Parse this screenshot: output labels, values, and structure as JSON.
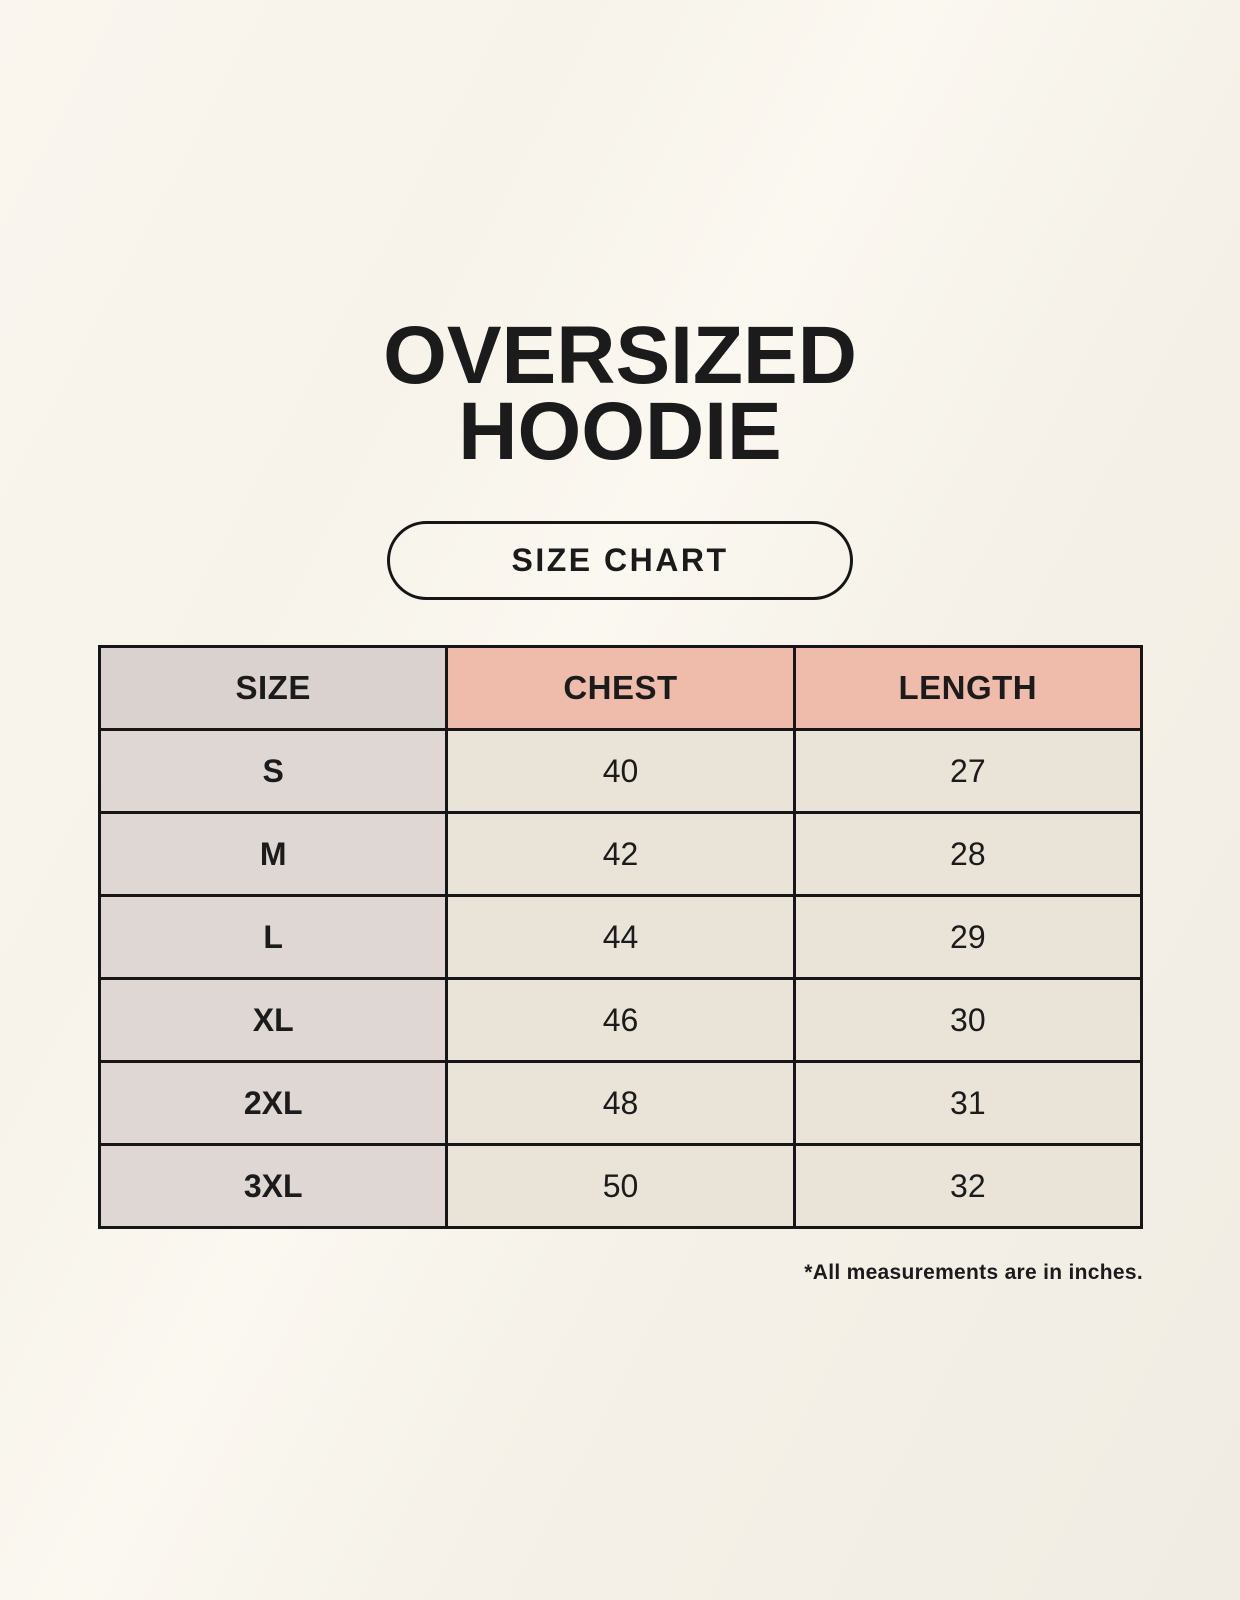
{
  "page": {
    "title_line1": "OVERSIZED",
    "title_line2": "HOODIE",
    "badge_label": "SIZE CHART",
    "footnote": "*All measurements are in inches."
  },
  "chart_data": {
    "type": "table",
    "title": "OVERSIZED HOODIE SIZE CHART",
    "unit": "inches",
    "columns": [
      "SIZE",
      "CHEST",
      "LENGTH"
    ],
    "rows": [
      [
        "S",
        "40",
        "27"
      ],
      [
        "M",
        "42",
        "28"
      ],
      [
        "L",
        "44",
        "29"
      ],
      [
        "XL",
        "46",
        "30"
      ],
      [
        "2XL",
        "48",
        "31"
      ],
      [
        "3XL",
        "50",
        "32"
      ]
    ]
  },
  "colors": {
    "background": "#f8f4ec",
    "header_size_bg": "#d9d2cf",
    "header_measure_bg": "#efbcac",
    "size_col_bg": "#ded7d3",
    "value_cell_bg": "#eae4d8",
    "border": "#161616",
    "ink": "#1b1b1b"
  }
}
